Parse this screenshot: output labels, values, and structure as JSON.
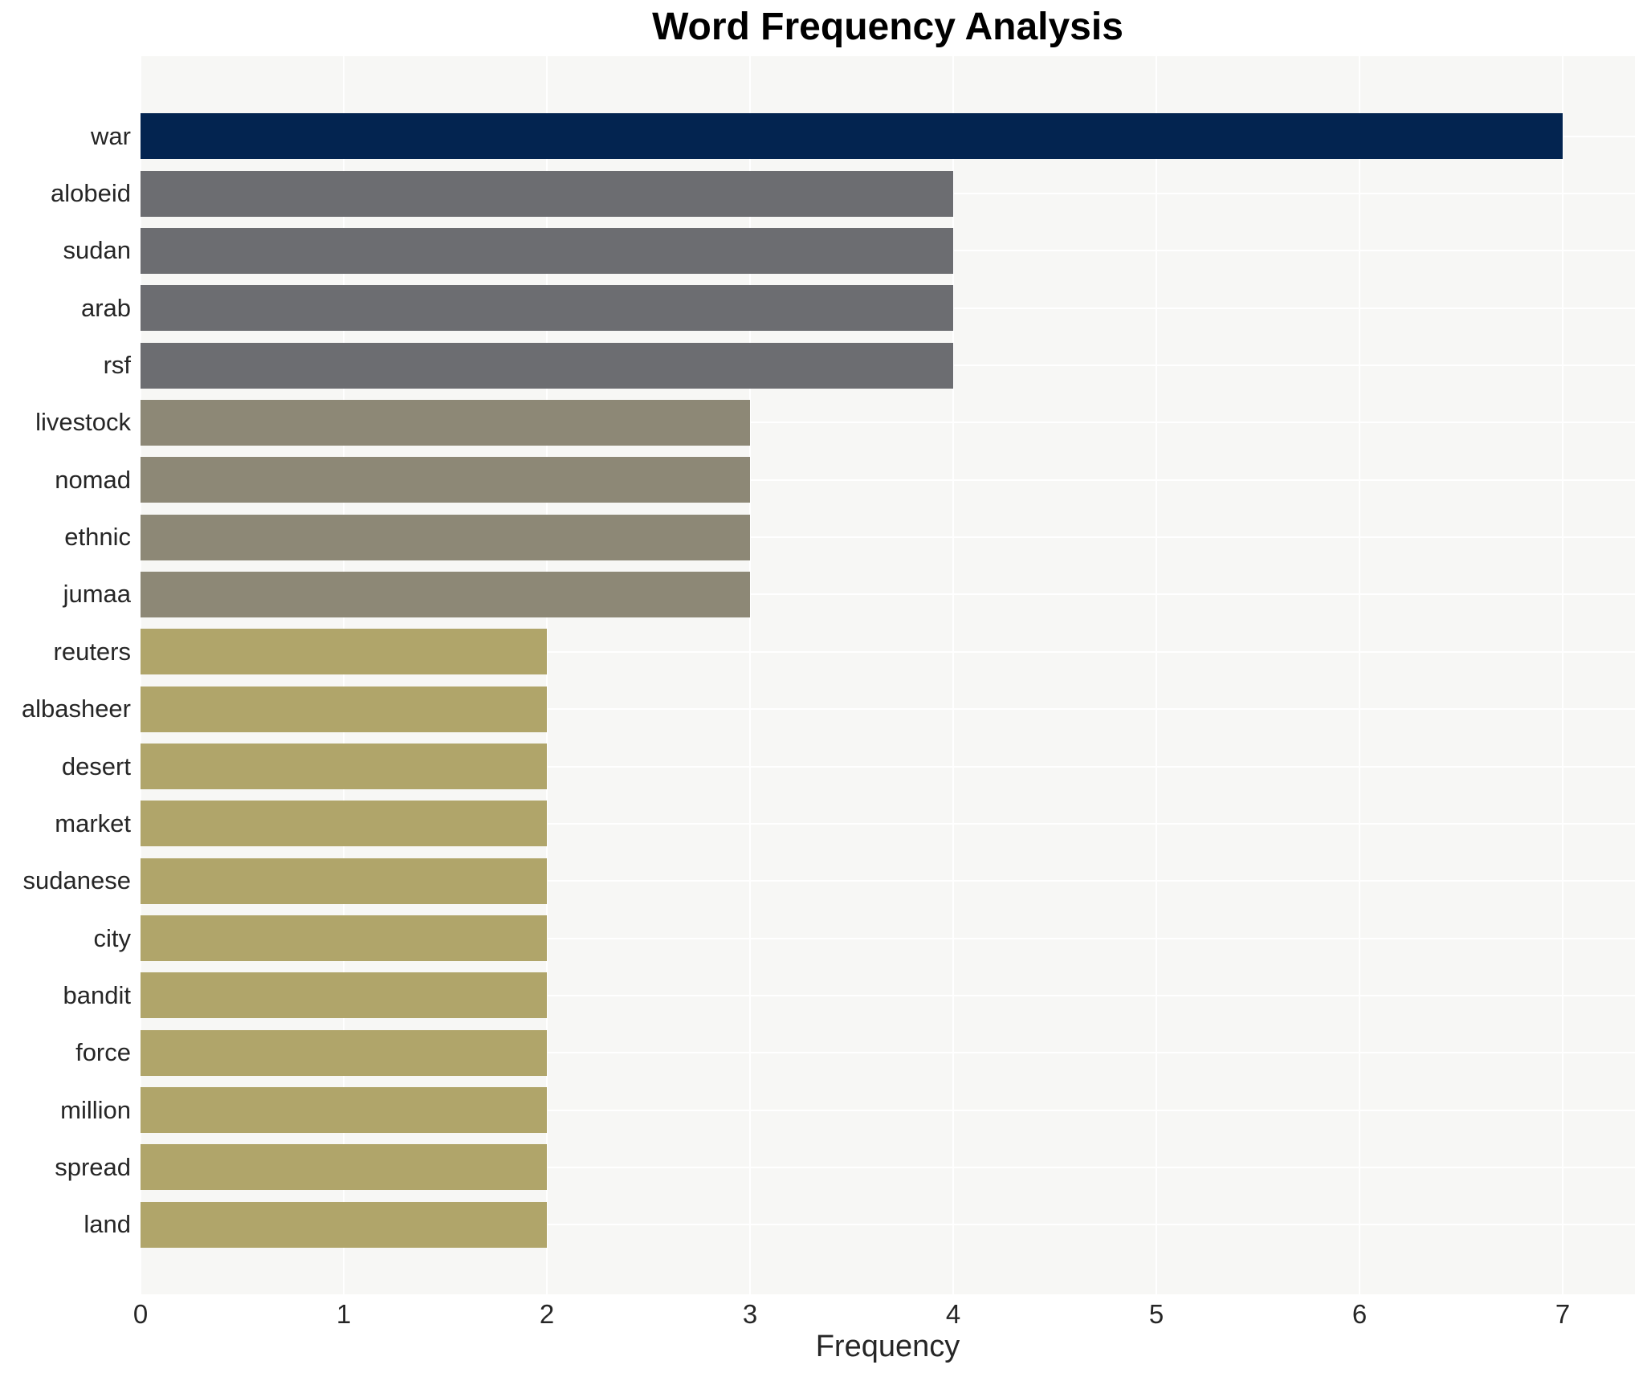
{
  "figure": {
    "title": "Word Frequency Analysis",
    "xlabel": "Frequency"
  },
  "chart_data": {
    "type": "bar",
    "orientation": "horizontal",
    "title": "Word Frequency Analysis",
    "xlabel": "Frequency",
    "ylabel": "",
    "categories": [
      "war",
      "alobeid",
      "sudan",
      "arab",
      "rsf",
      "livestock",
      "nomad",
      "ethnic",
      "jumaa",
      "reuters",
      "albasheer",
      "desert",
      "market",
      "sudanese",
      "city",
      "bandit",
      "force",
      "million",
      "spread",
      "land"
    ],
    "values": [
      7,
      4,
      4,
      4,
      4,
      3,
      3,
      3,
      3,
      2,
      2,
      2,
      2,
      2,
      2,
      2,
      2,
      2,
      2,
      2
    ],
    "bar_colors": [
      "#032450",
      "#6c6d71",
      "#6c6d71",
      "#6c6d71",
      "#6c6d71",
      "#8d8876",
      "#8d8876",
      "#8d8876",
      "#8d8876",
      "#b0a56a",
      "#b0a56a",
      "#b0a56a",
      "#b0a56a",
      "#b0a56a",
      "#b0a56a",
      "#b0a56a",
      "#b0a56a",
      "#b0a56a",
      "#b0a56a",
      "#b0a56a"
    ],
    "color_by_value": {
      "7": "#032450",
      "4": "#6c6d71",
      "3": "#8d8876",
      "2": "#b0a56a"
    },
    "xticks": [
      0,
      1,
      2,
      3,
      4,
      5,
      6,
      7
    ],
    "xlim": [
      0,
      7.36
    ],
    "grid": true,
    "grid_color": "#ffffff",
    "plot_background": "#f7f7f5",
    "figure_background": "#ffffff",
    "text_color": "#262626",
    "legend": null
  }
}
